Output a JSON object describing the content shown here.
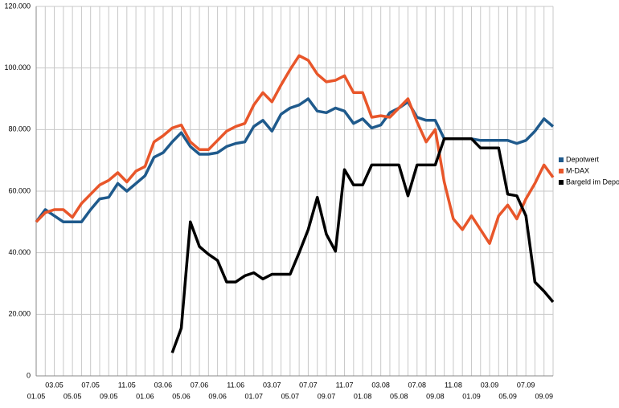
{
  "chart_data": {
    "type": "line",
    "categories": [
      "01.05",
      null,
      "03.05",
      null,
      "05.05",
      null,
      "07.05",
      null,
      "09.05",
      null,
      "11.05",
      null,
      "01.06",
      null,
      "03.06",
      null,
      "05.06",
      null,
      "07.06",
      null,
      "09.06",
      null,
      "11.06",
      null,
      "01.07",
      null,
      "03.07",
      null,
      "05.07",
      null,
      "07.07",
      null,
      "09.07",
      null,
      "11.07",
      null,
      "01.08",
      null,
      "03.08",
      null,
      "05.08",
      null,
      "07.08",
      null,
      "09.08",
      null,
      "11.08",
      null,
      "01.09",
      null,
      "03.09",
      null,
      "05.09",
      null,
      "07.09",
      null,
      "09.09",
      null
    ],
    "series": [
      {
        "name": "Depotwert",
        "color": "#1f5a8c",
        "values": [
          50000,
          54000,
          52000,
          50000,
          50000,
          50000,
          54000,
          57500,
          58000,
          62500,
          60000,
          62500,
          65000,
          71000,
          72500,
          76000,
          79000,
          74500,
          72000,
          72000,
          72500,
          74500,
          75500,
          76000,
          81000,
          83000,
          79500,
          85000,
          87000,
          88000,
          90000,
          86000,
          85500,
          87000,
          86000,
          82000,
          83500,
          80500,
          81500,
          85500,
          87000,
          89000,
          84000,
          83000,
          83000,
          77000,
          77000,
          77000,
          77000,
          76500,
          76500,
          76500,
          76500,
          75500,
          76500,
          79500,
          83500,
          81000
        ]
      },
      {
        "name": "M-DAX",
        "color": "#e8562a",
        "values": [
          50000,
          53000,
          54000,
          54000,
          51500,
          56000,
          59000,
          62000,
          63500,
          66000,
          63000,
          66500,
          68000,
          76000,
          78000,
          80500,
          81500,
          76000,
          73500,
          73500,
          76500,
          79500,
          81000,
          82000,
          88000,
          92000,
          89000,
          94500,
          99500,
          104000,
          102500,
          98000,
          95500,
          96000,
          97500,
          92000,
          92000,
          84000,
          84500,
          84000,
          87000,
          90000,
          82500,
          76000,
          80000,
          63000,
          51000,
          47500,
          52000,
          47500,
          43000,
          52000,
          55500,
          51000,
          57500,
          62500,
          68500,
          64500
        ]
      },
      {
        "name": "Bargeld im Depot",
        "color": "#000000",
        "values": [
          null,
          null,
          null,
          null,
          null,
          null,
          null,
          null,
          null,
          null,
          null,
          null,
          null,
          null,
          null,
          7500,
          15500,
          50000,
          42000,
          39500,
          37500,
          30500,
          30500,
          32500,
          33500,
          31500,
          33000,
          33000,
          33000,
          40000,
          47500,
          58000,
          46000,
          40500,
          67000,
          62000,
          62000,
          68500,
          68500,
          68500,
          68500,
          58500,
          68500,
          68500,
          68500,
          77000,
          77000,
          77000,
          77000,
          74000,
          74000,
          74000,
          59000,
          58500,
          52000,
          30500,
          27500,
          24000
        ]
      }
    ],
    "ylim": [
      0,
      120000
    ],
    "yticks": [
      0,
      {
        "value": 20000,
        "label": "20.000"
      },
      {
        "value": 40000,
        "label": "40.000"
      },
      {
        "value": 60000,
        "label": "60.000"
      },
      {
        "value": 80000,
        "label": "80.000"
      },
      {
        "value": 100000,
        "label": "100.000"
      },
      {
        "value": 120000,
        "label": "120.000"
      }
    ],
    "grid": true,
    "legend": "right"
  }
}
